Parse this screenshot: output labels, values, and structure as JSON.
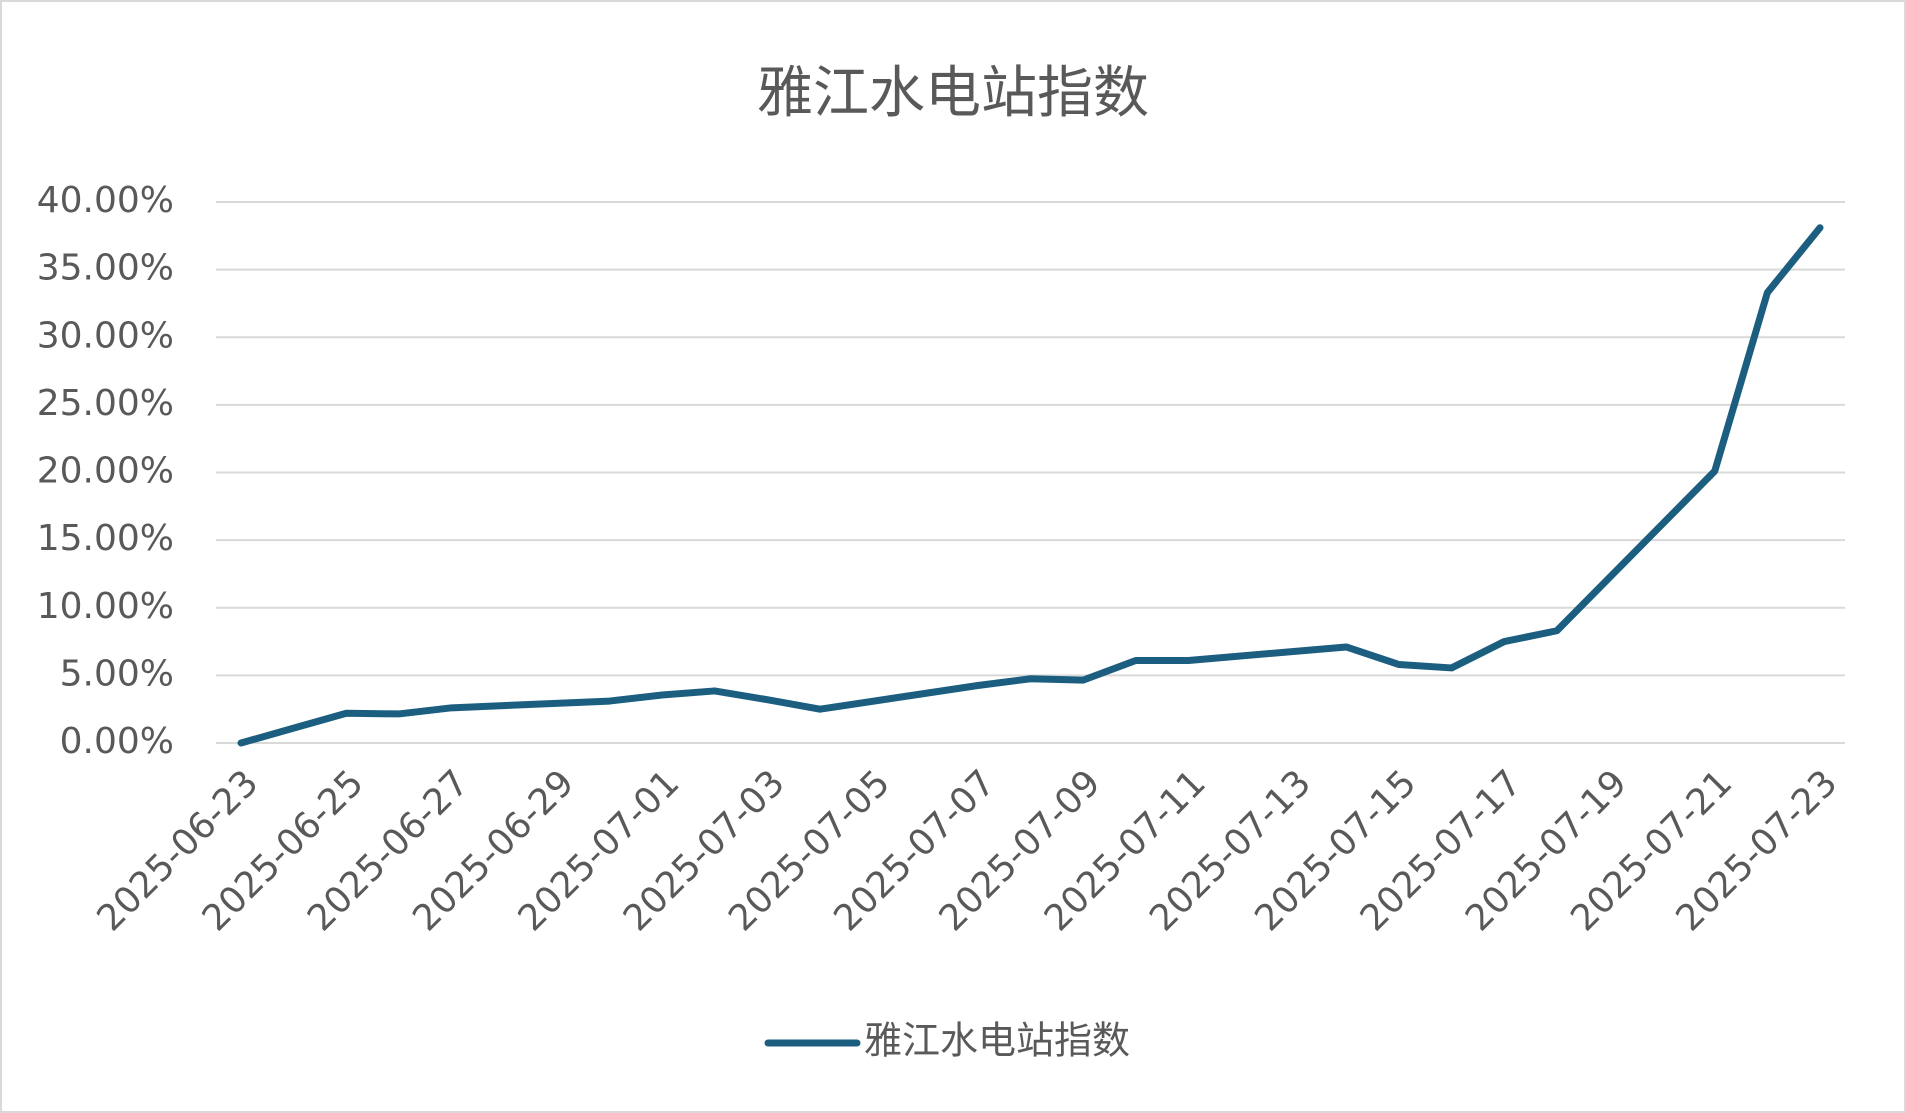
{
  "chart_data": {
    "type": "line",
    "title": "雅江水电站指数",
    "x": [
      "2025-06-23",
      "2025-06-24",
      "2025-06-25",
      "2025-06-26",
      "2025-06-27",
      "2025-06-30",
      "2025-07-01",
      "2025-07-02",
      "2025-07-03",
      "2025-07-04",
      "2025-07-07",
      "2025-07-08",
      "2025-07-09",
      "2025-07-10",
      "2025-07-11",
      "2025-07-14",
      "2025-07-15",
      "2025-07-16",
      "2025-07-17",
      "2025-07-18",
      "2025-07-21",
      "2025-07-22",
      "2025-07-23"
    ],
    "series": [
      {
        "name": "雅江水电站指数",
        "color": "#1b5e80",
        "values": [
          0,
          1.1,
          2.2,
          2.15,
          2.6,
          3.1,
          3.55,
          3.85,
          3.2,
          2.5,
          4.25,
          4.75,
          4.65,
          6.1,
          6.1,
          7.1,
          5.8,
          5.55,
          7.5,
          8.3,
          20.1,
          33.3,
          38.1
        ]
      }
    ],
    "xlim": [
      "2025-06-23",
      "2025-07-23"
    ],
    "xticks": [
      "2025-06-23",
      "2025-06-25",
      "2025-06-27",
      "2025-06-29",
      "2025-07-01",
      "2025-07-03",
      "2025-07-05",
      "2025-07-07",
      "2025-07-09",
      "2025-07-11",
      "2025-07-13",
      "2025-07-15",
      "2025-07-17",
      "2025-07-19",
      "2025-07-21",
      "2025-07-23"
    ],
    "ylim": [
      0,
      40
    ],
    "yticks": [
      {
        "value": 0,
        "label": "0.00%"
      },
      {
        "value": 5,
        "label": "5.00%"
      },
      {
        "value": 10,
        "label": "10.00%"
      },
      {
        "value": 15,
        "label": "15.00%"
      },
      {
        "value": 20,
        "label": "20.00%"
      },
      {
        "value": 25,
        "label": "25.00%"
      },
      {
        "value": 30,
        "label": "30.00%"
      },
      {
        "value": 35,
        "label": "35.00%"
      },
      {
        "value": 40,
        "label": "40.00%"
      }
    ],
    "grid": true,
    "legend": "bottom"
  }
}
